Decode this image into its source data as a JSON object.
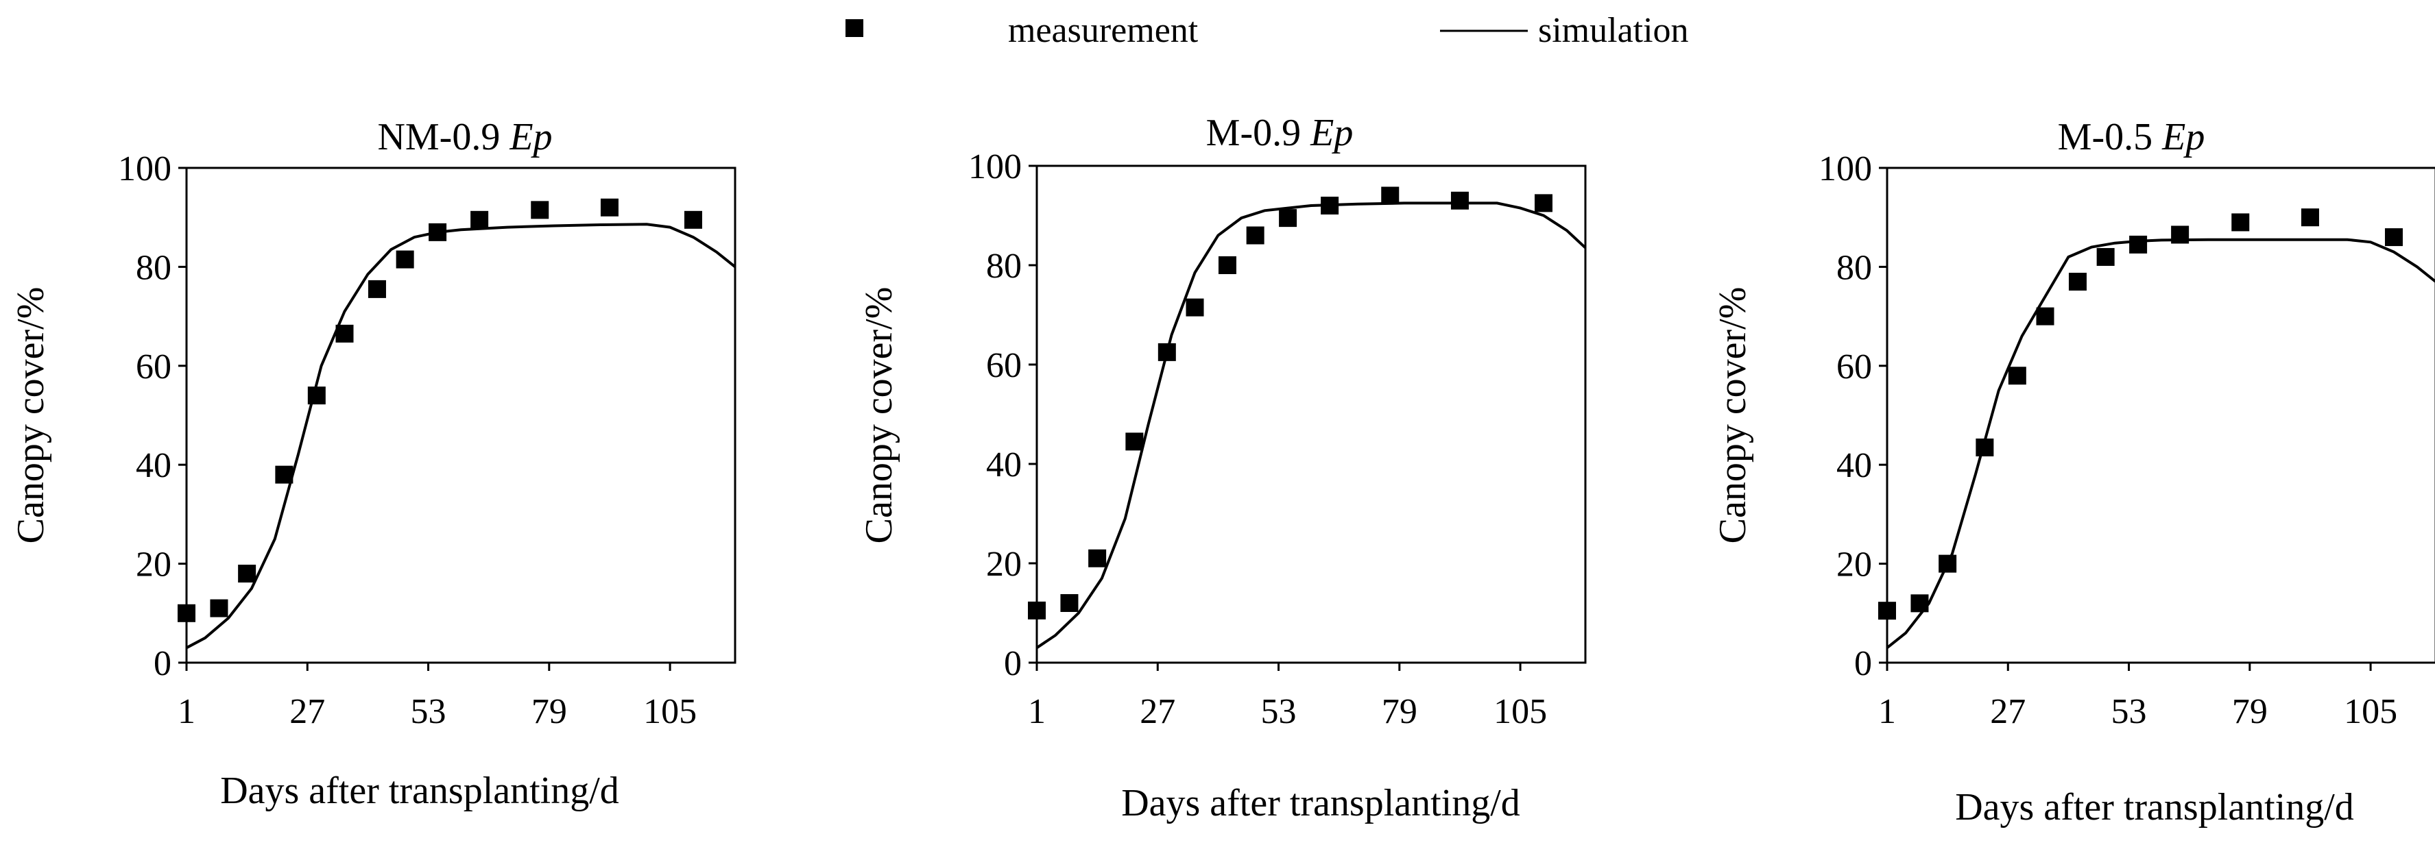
{
  "legend": {
    "measurement_label": "measurement",
    "simulation_label": "simulation",
    "marker_color": "#000000",
    "line_color": "#000000"
  },
  "chart_data": [
    {
      "type": "scatter",
      "title_prefix": "NM-0.9",
      "title_italic": "Ep",
      "xlabel": "Days after transplanting/d",
      "ylabel": "Canopy cover/%",
      "xlim": [
        1,
        119
      ],
      "ylim": [
        0,
        100
      ],
      "xticks": [
        1,
        27,
        53,
        79,
        105
      ],
      "yticks": [
        0,
        20,
        40,
        60,
        80,
        100
      ],
      "series": [
        {
          "name": "measurement",
          "kind": "markers",
          "x": [
            1,
            8,
            14,
            22,
            29,
            35,
            42,
            48,
            55,
            64,
            77,
            92,
            110
          ],
          "y": [
            10,
            11,
            18,
            38,
            54,
            66.5,
            75.5,
            81.5,
            87,
            89.5,
            91.5,
            92,
            89.5
          ]
        },
        {
          "name": "simulation",
          "kind": "line",
          "x": [
            1,
            5,
            10,
            15,
            20,
            25,
            30,
            35,
            40,
            45,
            50,
            55,
            60,
            70,
            80,
            90,
            100,
            105,
            110,
            115,
            119
          ],
          "y": [
            3,
            5,
            9,
            15,
            25,
            42,
            60,
            71,
            78.5,
            83.5,
            86,
            87,
            87.5,
            88,
            88.3,
            88.5,
            88.6,
            88,
            86,
            83,
            80
          ]
        }
      ]
    },
    {
      "type": "scatter",
      "title_prefix": "M-0.9",
      "title_italic": "Ep",
      "xlabel": "Days after transplanting/d",
      "ylabel": "Canopy cover/%",
      "xlim": [
        1,
        119
      ],
      "ylim": [
        0,
        100
      ],
      "xticks": [
        1,
        27,
        53,
        79,
        105
      ],
      "yticks": [
        0,
        20,
        40,
        60,
        80,
        100
      ],
      "series": [
        {
          "name": "measurement",
          "kind": "markers",
          "x": [
            1,
            8,
            14,
            22,
            29,
            35,
            42,
            48,
            55,
            64,
            77,
            92,
            110
          ],
          "y": [
            10.5,
            12,
            21,
            44.5,
            62.5,
            71.5,
            80,
            86,
            89.5,
            92,
            94,
            93,
            92.5
          ]
        },
        {
          "name": "simulation",
          "kind": "line",
          "x": [
            1,
            5,
            10,
            15,
            20,
            25,
            30,
            35,
            40,
            45,
            50,
            55,
            60,
            70,
            80,
            90,
            100,
            105,
            110,
            115,
            119
          ],
          "y": [
            3,
            5.5,
            10,
            17,
            29,
            48,
            66,
            78.5,
            86,
            89.5,
            91,
            91.5,
            92,
            92.3,
            92.5,
            92.5,
            92.5,
            91.5,
            90,
            87,
            83.5
          ]
        }
      ]
    },
    {
      "type": "scatter",
      "title_prefix": "M-0.5",
      "title_italic": "Ep",
      "xlabel": "Days after transplanting/d",
      "ylabel": "Canopy cover/%",
      "xlim": [
        1,
        119
      ],
      "ylim": [
        0,
        100
      ],
      "xticks": [
        1,
        27,
        53,
        79,
        105
      ],
      "yticks": [
        0,
        20,
        40,
        60,
        80,
        100
      ],
      "series": [
        {
          "name": "measurement",
          "kind": "markers",
          "x": [
            1,
            8,
            14,
            22,
            29,
            35,
            42,
            48,
            55,
            64,
            77,
            92,
            110
          ],
          "y": [
            10.5,
            12,
            20,
            43.5,
            58,
            70,
            77,
            82,
            84.5,
            86.5,
            89,
            90,
            86
          ]
        },
        {
          "name": "simulation",
          "kind": "line",
          "x": [
            1,
            5,
            10,
            15,
            20,
            25,
            30,
            35,
            40,
            45,
            50,
            55,
            60,
            70,
            80,
            90,
            100,
            105,
            110,
            115,
            119
          ],
          "y": [
            3,
            6,
            12,
            22,
            38,
            55,
            66,
            74,
            82,
            84,
            84.8,
            85.2,
            85.4,
            85.5,
            85.5,
            85.5,
            85.5,
            85,
            83,
            80,
            77
          ]
        }
      ]
    }
  ]
}
